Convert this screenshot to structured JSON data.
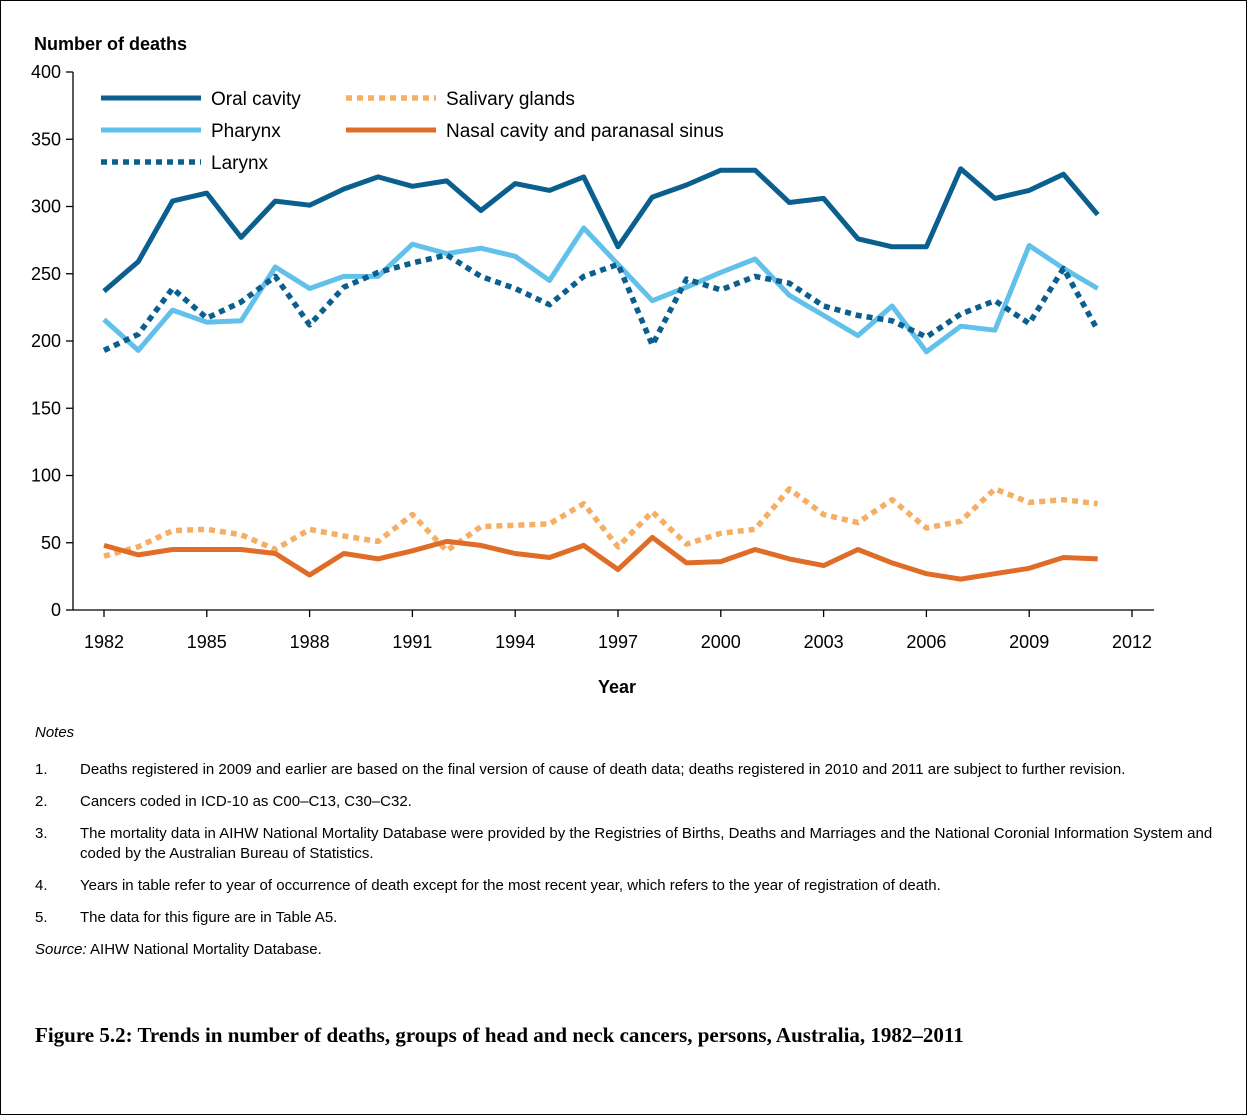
{
  "chart_data": {
    "type": "line",
    "ylabel": "Number of deaths",
    "xlabel": "Year",
    "xlim": [
      1982,
      2012
    ],
    "ylim": [
      0,
      400
    ],
    "x_ticks": [
      "1982",
      "1985",
      "1988",
      "1991",
      "1994",
      "1997",
      "2000",
      "2003",
      "2006",
      "2009",
      "2012"
    ],
    "y_ticks": [
      "0",
      "50",
      "100",
      "150",
      "200",
      "250",
      "300",
      "350",
      "400"
    ],
    "grid": false,
    "legend_position": "top-left",
    "x": [
      1982,
      1983,
      1984,
      1985,
      1986,
      1987,
      1988,
      1989,
      1990,
      1991,
      1992,
      1993,
      1994,
      1995,
      1996,
      1997,
      1998,
      1999,
      2000,
      2001,
      2002,
      2003,
      2004,
      2005,
      2006,
      2007,
      2008,
      2009,
      2010,
      2011
    ],
    "series": [
      {
        "name": "Oral cavity",
        "color": "#0b5f8f",
        "style": "solid",
        "values": [
          237,
          259,
          304,
          310,
          277,
          304,
          301,
          313,
          322,
          315,
          319,
          297,
          317,
          312,
          322,
          270,
          307,
          316,
          327,
          327,
          303,
          306,
          276,
          270,
          270,
          328,
          306,
          312,
          324,
          294
        ]
      },
      {
        "name": "Pharynx",
        "color": "#62c1ea",
        "style": "solid",
        "values": [
          216,
          193,
          223,
          214,
          215,
          255,
          239,
          248,
          248,
          272,
          265,
          269,
          263,
          245,
          284,
          257,
          230,
          240,
          251,
          261,
          234,
          219,
          204,
          226,
          192,
          211,
          208,
          271,
          254,
          239
        ]
      },
      {
        "name": "Larynx",
        "color": "#0b5f8f",
        "style": "dotted",
        "values": [
          193,
          205,
          239,
          217,
          229,
          248,
          212,
          240,
          251,
          258,
          264,
          248,
          239,
          227,
          248,
          257,
          197,
          246,
          238,
          248,
          243,
          226,
          219,
          215,
          203,
          220,
          230,
          213,
          254,
          208
        ]
      },
      {
        "name": "Salivary glands",
        "color": "#f5ae63",
        "style": "dotted",
        "values": [
          40,
          47,
          59,
          60,
          56,
          45,
          60,
          55,
          51,
          71,
          44,
          62,
          63,
          64,
          79,
          47,
          73,
          49,
          57,
          60,
          90,
          71,
          65,
          82,
          61,
          66,
          90,
          80,
          82,
          79
        ]
      },
      {
        "name": "Nasal cavity and paranasal sinus",
        "color": "#df6d27",
        "style": "solid",
        "values": [
          48,
          41,
          45,
          45,
          45,
          42,
          26,
          42,
          38,
          44,
          51,
          48,
          42,
          39,
          48,
          30,
          54,
          35,
          36,
          45,
          38,
          33,
          45,
          35,
          27,
          23,
          27,
          31,
          39,
          38
        ]
      }
    ]
  },
  "notes": {
    "heading": "Notes",
    "items": [
      {
        "num": "1.",
        "text": "Deaths registered in 2009 and earlier are based on the final version of cause of death data; deaths registered in 2010 and 2011 are subject to further revision."
      },
      {
        "num": "2.",
        "text": "Cancers coded in ICD-10 as C00–C13, C30–C32."
      },
      {
        "num": "3.",
        "text": "The mortality data in AIHW National Mortality Database were provided by the Registries of Births, Deaths and Marriages and the National Coronial Information System and coded by the Australian Bureau of Statistics."
      },
      {
        "num": "4.",
        "text": "Years in table refer to year of occurrence of death except for the most recent year, which refers to the year of registration of death."
      },
      {
        "num": "5.",
        "text": "The data for this figure are in Table A5."
      }
    ],
    "source_label": "Source:",
    "source_text": " AIHW National Mortality Database."
  },
  "caption": "Figure 5.2: Trends in number of deaths, groups of head and neck cancers, persons, Australia, 1982–2011"
}
